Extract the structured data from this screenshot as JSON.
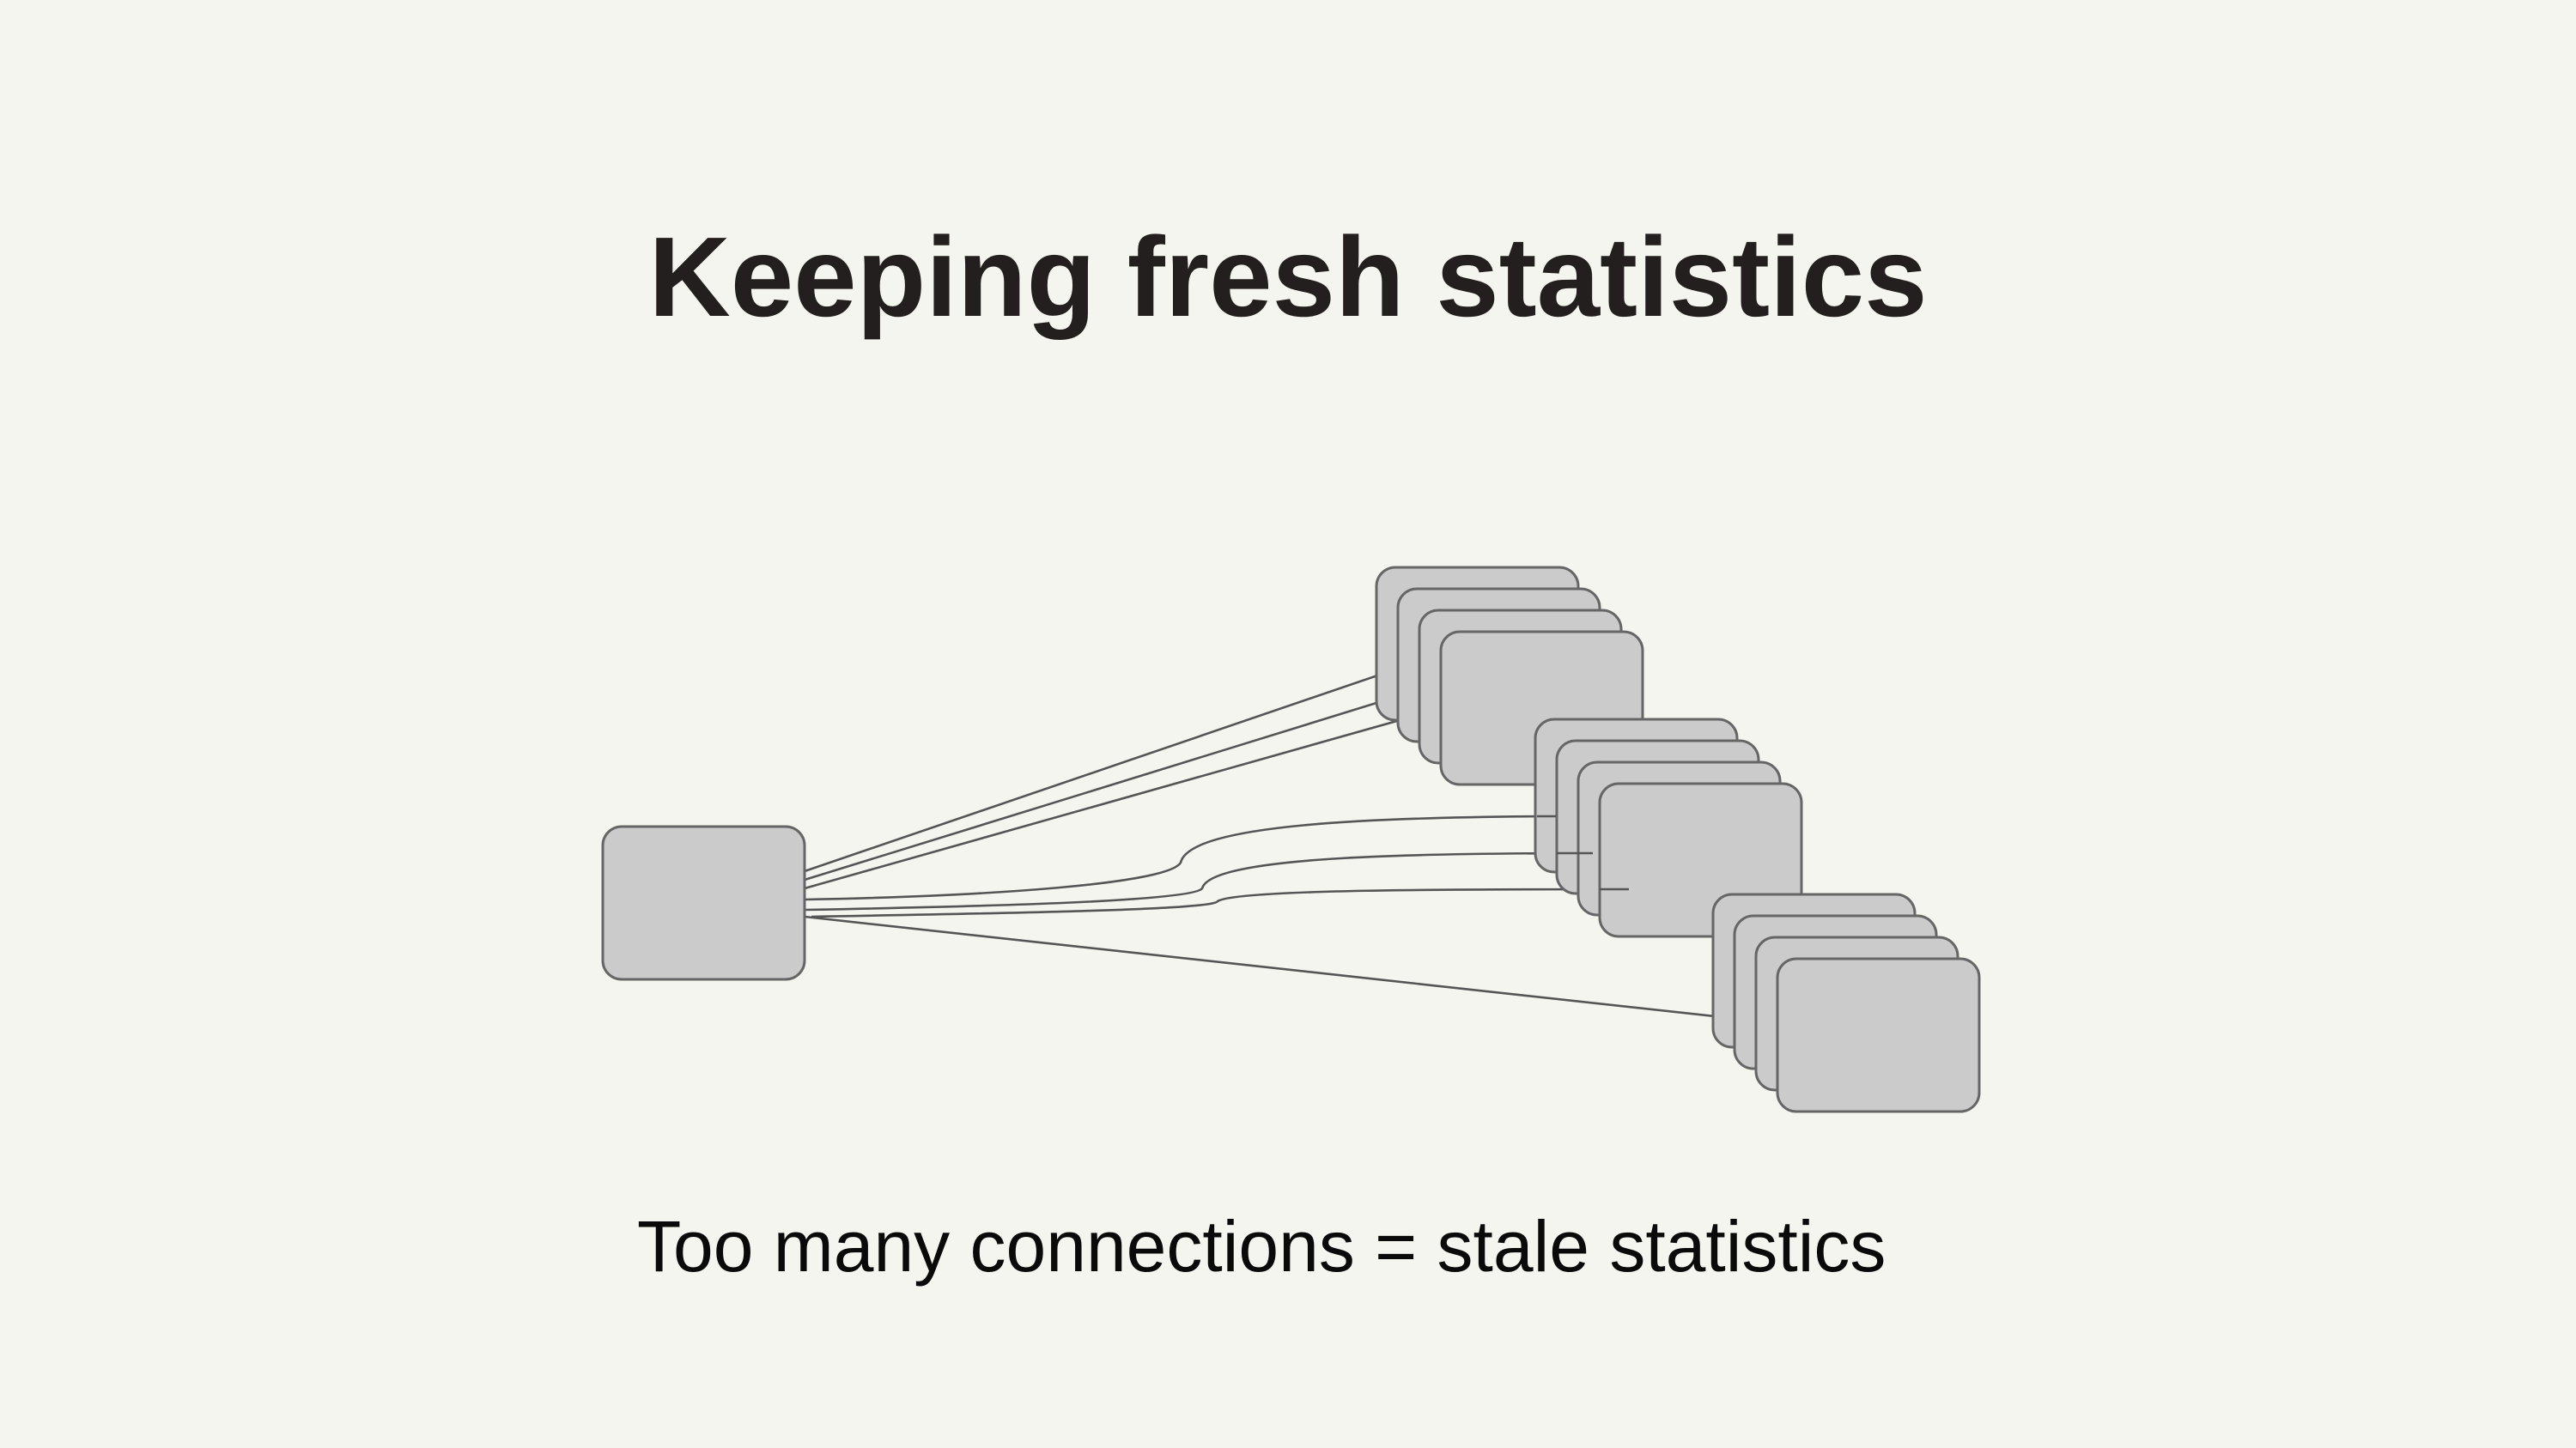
{
  "slide": {
    "title": "Keeping fresh statistics",
    "caption": "Too many connections = stale statistics"
  },
  "diagram": {
    "source_node": "client",
    "target_groups": [
      {
        "name": "group-top",
        "stack_count": 4,
        "connections": 3
      },
      {
        "name": "group-middle",
        "stack_count": 4,
        "connections": 3
      },
      {
        "name": "group-bottom",
        "stack_count": 4,
        "connections": 1
      }
    ],
    "colors": {
      "background": "#f5f5f0",
      "box_fill": "#cbcbcb",
      "box_stroke": "#666666",
      "line": "#555555",
      "title": "#231f1e",
      "caption": "#0a0a0a"
    }
  }
}
